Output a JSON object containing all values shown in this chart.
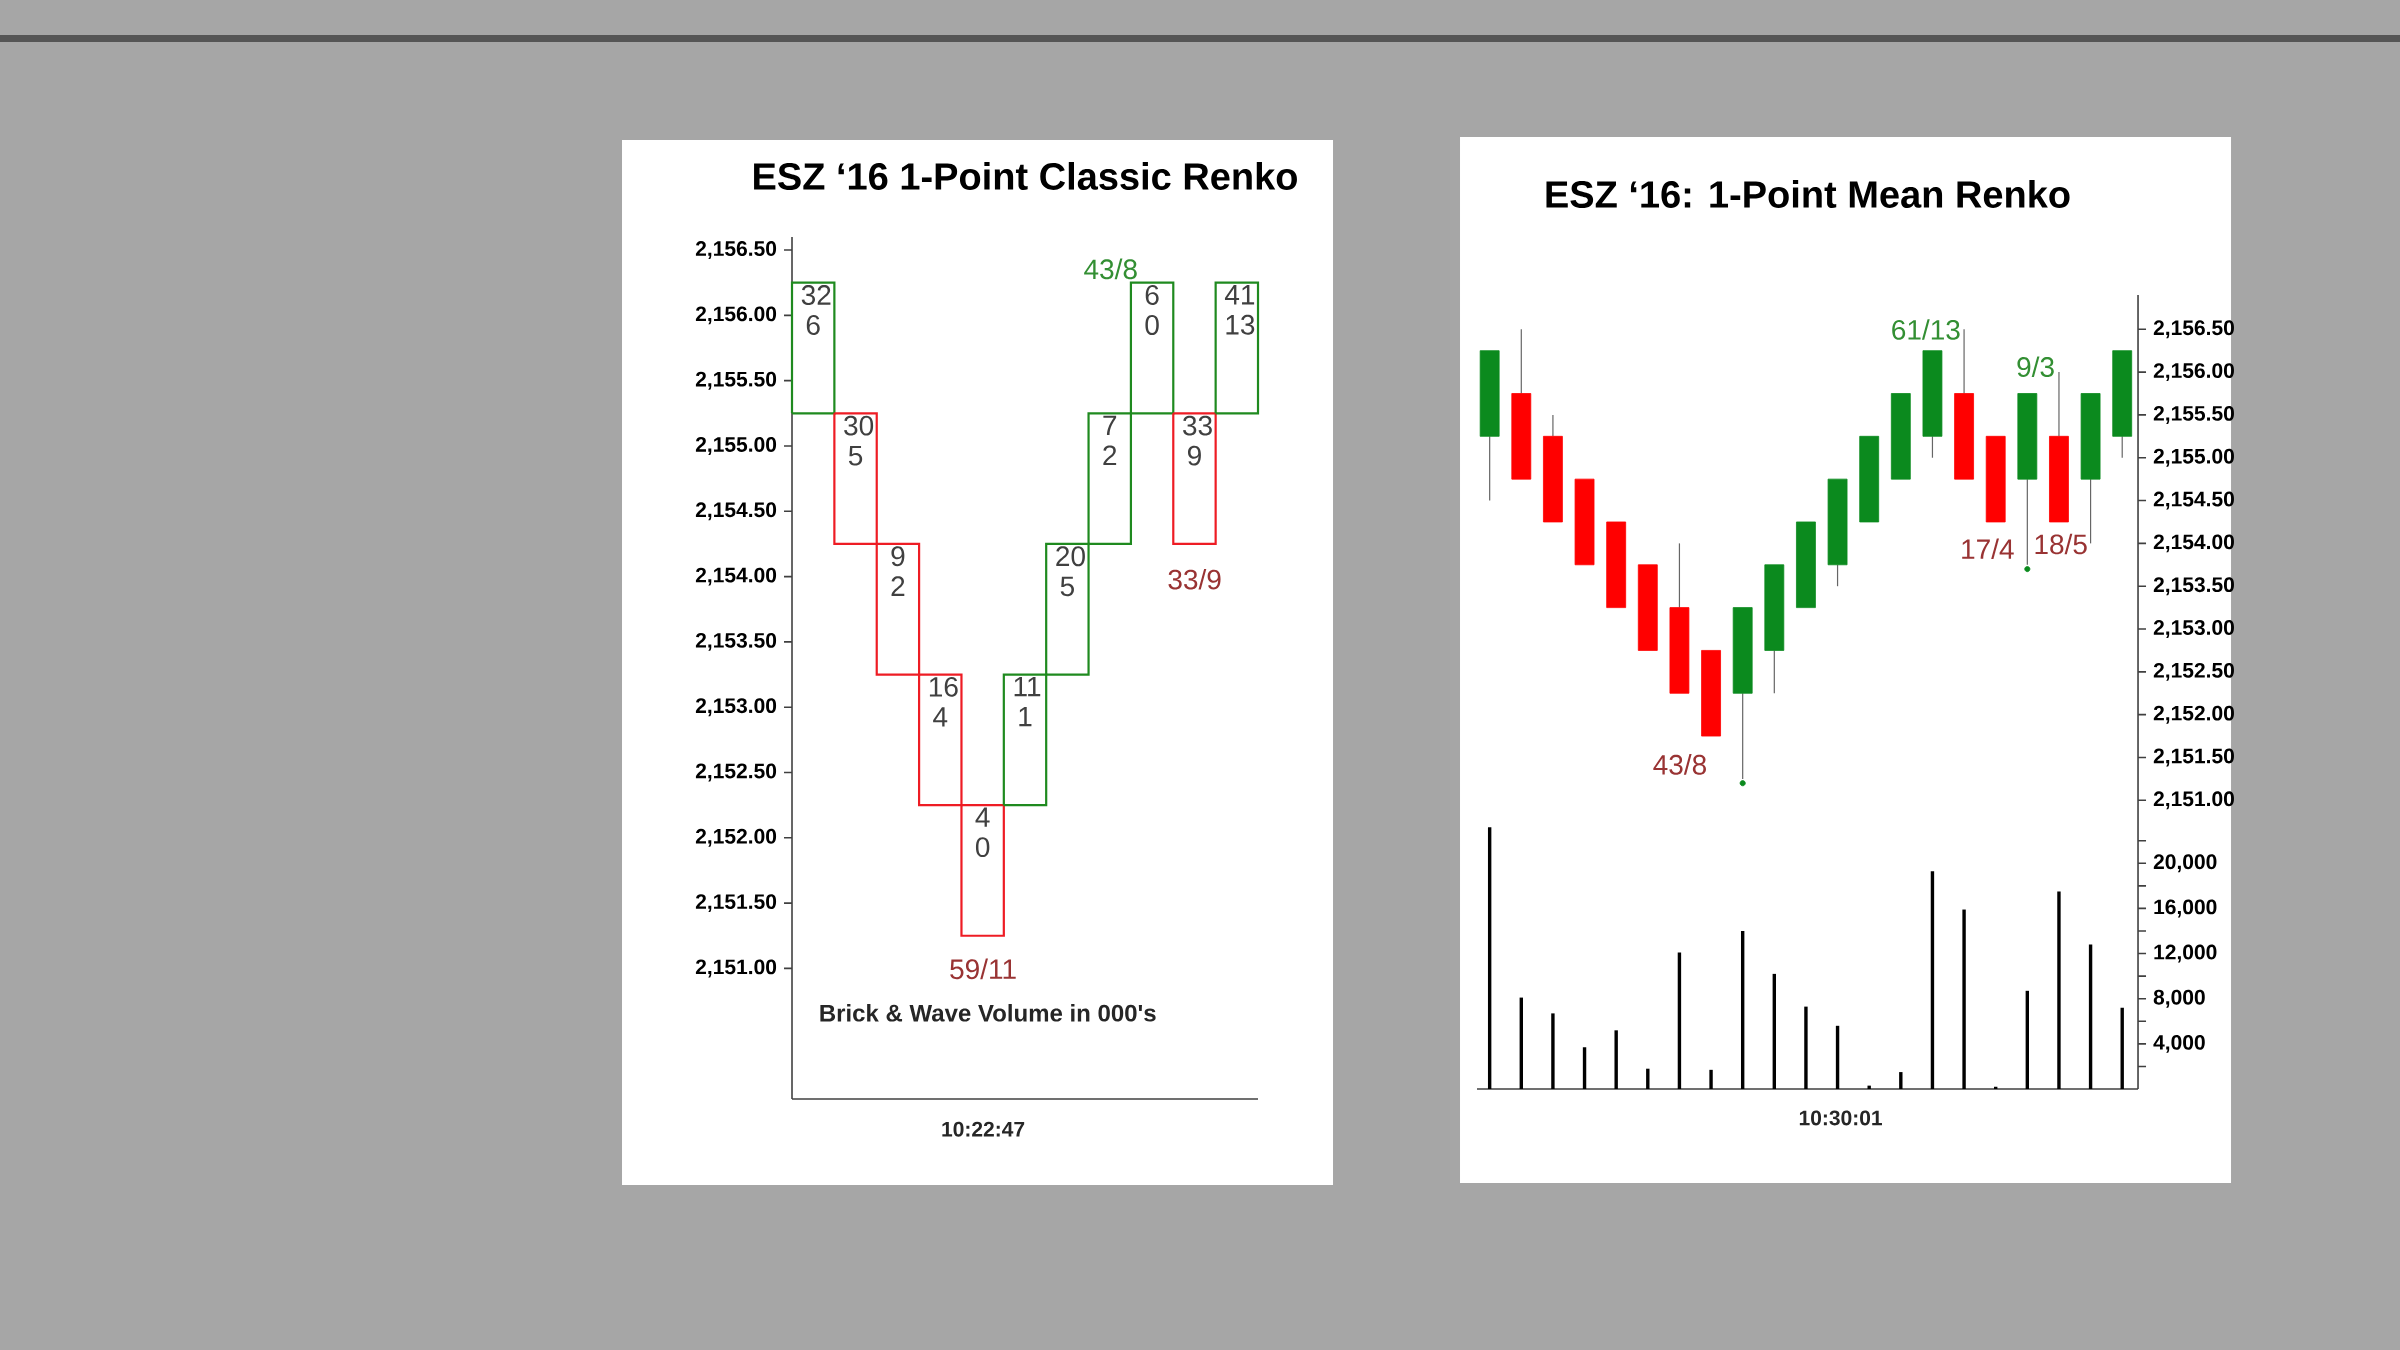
{
  "chart_data": [
    {
      "type": "candlestick",
      "title": "ESZ ‘16 1-Point Classic Renko",
      "categories": [
        null,
        null,
        null,
        null,
        null,
        null,
        null,
        null,
        null,
        null,
        null
      ],
      "ohlc": [
        [
          2155.25,
          2156.25,
          2155.25,
          2156.25
        ],
        [
          2155.25,
          2155.25,
          2154.25,
          2154.25
        ],
        [
          2154.25,
          2154.25,
          2153.25,
          2153.25
        ],
        [
          2153.25,
          2153.25,
          2152.25,
          2152.25
        ],
        [
          2152.25,
          2152.25,
          2151.25,
          2151.25
        ],
        [
          2152.25,
          2153.25,
          2152.25,
          2153.25
        ],
        [
          2153.25,
          2154.25,
          2153.25,
          2154.25
        ],
        [
          2154.25,
          2155.25,
          2154.25,
          2155.25
        ],
        [
          2155.25,
          2156.25,
          2155.25,
          2156.25
        ],
        [
          2155.25,
          2155.25,
          2154.25,
          2154.25
        ],
        [
          2155.25,
          2156.25,
          2155.25,
          2156.25
        ]
      ],
      "colors": [
        "#1f8a1f",
        "#ee1c24",
        "#ee1c24",
        "#ee1c24",
        "#ee1c24",
        "#1f8a1f",
        "#1f8a1f",
        "#1f8a1f",
        "#1f8a1f",
        "#ee1c24",
        "#1f8a1f"
      ],
      "value_labels": [
        "32 6",
        "30 5",
        "9 2",
        "16 4",
        "4 0",
        "11 1",
        "20 5",
        "7 2",
        "6 0",
        "33 9",
        "41 13"
      ],
      "ylim": [
        2150.0,
        2156.6
      ],
      "yticks": [
        {
          "value": 2151.0,
          "label": "2,151.00"
        },
        {
          "value": 2151.5,
          "label": "2,151.50"
        },
        {
          "value": 2152.0,
          "label": "2,152.00"
        },
        {
          "value": 2152.5,
          "label": "2,152.50"
        },
        {
          "value": 2153.0,
          "label": "2,153.00"
        },
        {
          "value": 2153.5,
          "label": "2,153.50"
        },
        {
          "value": 2154.0,
          "label": "2,154.00"
        },
        {
          "value": 2154.5,
          "label": "2,154.50"
        },
        {
          "value": 2155.0,
          "label": "2,155.00"
        },
        {
          "value": 2155.5,
          "label": "2,155.50"
        },
        {
          "value": 2156.0,
          "label": "2,156.00"
        },
        {
          "value": 2156.5,
          "label": "2,156.50"
        }
      ],
      "annotations": [
        "Brick & Wave Volume in 000's",
        "10:22:47",
        "43/8",
        "59/11",
        "33/9"
      ]
    },
    {
      "type": "candlestick",
      "title": "ESZ ‘16: 1-Point Mean Renko",
      "categories": [
        null,
        null,
        null,
        null,
        null,
        null,
        null,
        null,
        null,
        null,
        null,
        null,
        null,
        null,
        null,
        null,
        null,
        null,
        null,
        null,
        null
      ],
      "ohlc": [
        [
          2155.25,
          2156.25,
          2154.5,
          2156.25
        ],
        [
          2155.75,
          2156.5,
          2154.75,
          2154.75
        ],
        [
          2155.25,
          2155.5,
          2154.25,
          2154.25
        ],
        [
          2154.75,
          2154.75,
          2153.75,
          2153.75
        ],
        [
          2154.25,
          2154.25,
          2153.25,
          2153.25
        ],
        [
          2153.75,
          2153.75,
          2152.75,
          2152.75
        ],
        [
          2153.25,
          2154.0,
          2152.25,
          2152.25
        ],
        [
          2152.75,
          2152.75,
          2151.75,
          2151.75
        ],
        [
          2152.25,
          2153.25,
          2151.25,
          2153.25
        ],
        [
          2152.75,
          2153.75,
          2152.25,
          2153.75
        ],
        [
          2153.25,
          2154.25,
          2153.25,
          2154.25
        ],
        [
          2153.75,
          2154.75,
          2153.5,
          2154.75
        ],
        [
          2154.25,
          2155.25,
          2154.25,
          2155.25
        ],
        [
          2154.75,
          2155.75,
          2154.75,
          2155.75
        ],
        [
          2155.25,
          2156.25,
          2155.0,
          2156.25
        ],
        [
          2155.75,
          2156.5,
          2154.75,
          2154.75
        ],
        [
          2155.25,
          2155.25,
          2154.25,
          2154.25
        ],
        [
          2154.75,
          2155.75,
          2153.75,
          2155.75
        ],
        [
          2155.25,
          2156.0,
          2154.25,
          2154.25
        ],
        [
          2154.75,
          2155.75,
          2154.0,
          2155.75
        ],
        [
          2155.25,
          2156.25,
          2155.0,
          2156.25
        ]
      ],
      "colors": [
        "#0b8a1e",
        "#ff0000",
        "#ff0000",
        "#ff0000",
        "#ff0000",
        "#ff0000",
        "#ff0000",
        "#ff0000",
        "#0b8a1e",
        "#0b8a1e",
        "#0b8a1e",
        "#0b8a1e",
        "#0b8a1e",
        "#0b8a1e",
        "#0b8a1e",
        "#ff0000",
        "#ff0000",
        "#0b8a1e",
        "#ff0000",
        "#0b8a1e",
        "#0b8a1e"
      ],
      "series": [
        {
          "type": "scatter",
          "values": [
            null,
            null,
            null,
            null,
            null,
            null,
            null,
            null,
            2151.2,
            null,
            null,
            null,
            null,
            null,
            null,
            null,
            null,
            2153.7,
            null,
            null,
            null
          ],
          "color": "#0b8a1e"
        }
      ],
      "ylim": [
        2150.7,
        2156.9
      ],
      "tick_labels": "y",
      "yticks": [
        {
          "value": 2151.0,
          "label": "2,151.00"
        },
        {
          "value": 2151.5,
          "label": "2,151.50"
        },
        {
          "value": 2152.0,
          "label": "2,152.00"
        },
        {
          "value": 2152.5,
          "label": "2,152.50"
        },
        {
          "value": 2153.0,
          "label": "2,153.00"
        },
        {
          "value": 2153.5,
          "label": "2,153.50"
        },
        {
          "value": 2154.0,
          "label": "2,154.00"
        },
        {
          "value": 2154.5,
          "label": "2,154.50"
        },
        {
          "value": 2155.0,
          "label": "2,155.00"
        },
        {
          "value": 2155.5,
          "label": "2,155.50"
        },
        {
          "value": 2156.0,
          "label": "2,156.00"
        },
        {
          "value": 2156.5,
          "label": "2,156.50"
        }
      ],
      "annotations": [
        "61/13",
        "9/3",
        "43/8",
        "17/4",
        "18/5"
      ]
    },
    {
      "type": "bar",
      "categories": [
        null,
        null,
        null,
        null,
        null,
        null,
        null,
        null,
        null,
        null,
        null,
        null,
        null,
        null,
        null,
        null,
        null,
        null,
        null,
        null,
        null
      ],
      "values": [
        23200,
        8100,
        6700,
        3700,
        5200,
        1800,
        12100,
        1700,
        14000,
        10200,
        7300,
        5600,
        300,
        1500,
        19300,
        15900,
        200,
        8700,
        17500,
        12800,
        7200
      ],
      "color": "#000000",
      "annotations": [
        "10:30:01"
      ],
      "ylim": [
        0,
        23300
      ],
      "yticks": [
        {
          "value": 2000,
          "label": null
        },
        {
          "value": 4000,
          "label": "4,000"
        },
        {
          "value": 6000,
          "label": null
        },
        {
          "value": 8000,
          "label": "8,000"
        },
        {
          "value": 10000,
          "label": null
        },
        {
          "value": 12000,
          "label": "12,000"
        },
        {
          "value": 14000,
          "label": null
        },
        {
          "value": 16000,
          "label": "16,000"
        },
        {
          "value": 18000,
          "label": null
        },
        {
          "value": 20000,
          "label": "20,000"
        },
        {
          "value": 22000,
          "label": null
        }
      ]
    }
  ]
}
